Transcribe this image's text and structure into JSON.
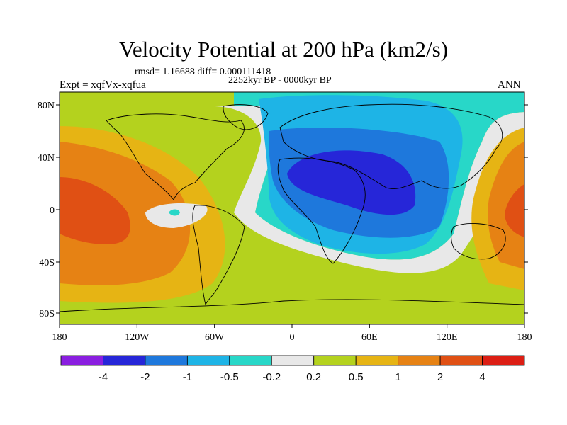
{
  "title": "Velocity Potential at 200 hPa (km2/s)",
  "stats_line": "rmsd= 1.16688 diff= 0.000111418",
  "subtitle": "2252kyr BP - 0000kyr BP",
  "left_label": "Expt = xqfVx-xqfua",
  "right_label": "ANN",
  "lat_ticks": [
    "80N",
    "40N",
    "0",
    "40S",
    "80S"
  ],
  "lon_ticks": [
    "180",
    "120W",
    "60W",
    "0",
    "60E",
    "120E",
    "180"
  ],
  "colorbar": {
    "colors": [
      "#8a1ee0",
      "#2626d8",
      "#1e78dc",
      "#1eb4e6",
      "#28d7c8",
      "#e8e8e8",
      "#b4d21e",
      "#e6b414",
      "#e68214",
      "#e05014",
      "#dc1e14"
    ],
    "labels": [
      "-4",
      "-2",
      "-1",
      "-0.5",
      "-0.2",
      "0.2",
      "0.5",
      "1",
      "2",
      "4"
    ]
  }
}
